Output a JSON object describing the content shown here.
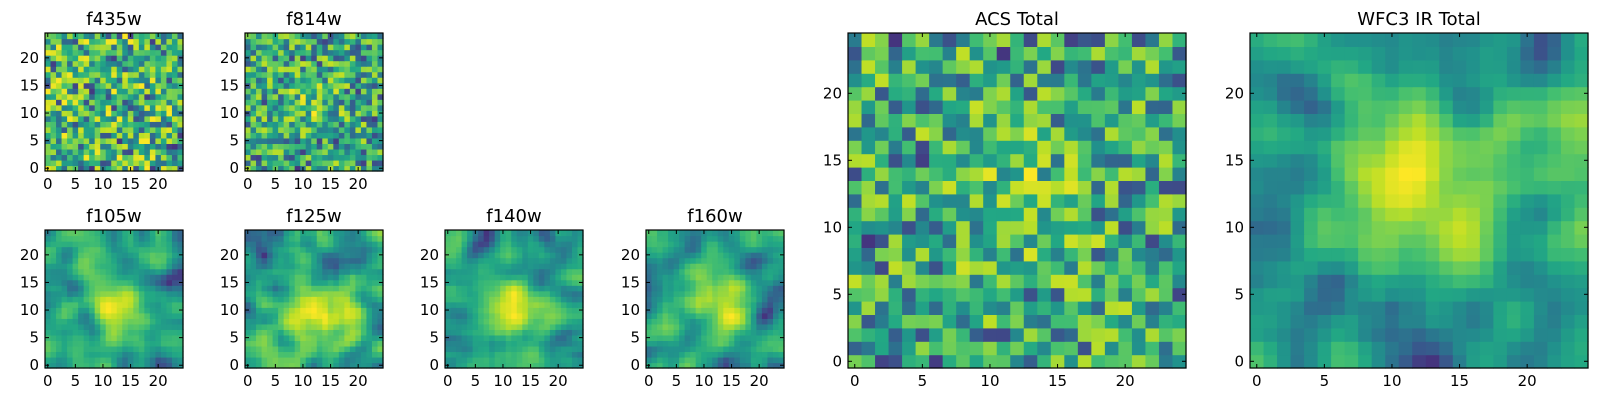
{
  "chart_data": [
    {
      "type": "heatmap",
      "title": "f435w",
      "xticks": [
        "0",
        "5",
        "10",
        "15",
        "20"
      ],
      "yticks": [
        "0",
        "5",
        "10",
        "15",
        "20"
      ],
      "xlim": [
        0,
        24
      ],
      "ylim": [
        0,
        24
      ],
      "grid_size": 25,
      "pattern": "noise",
      "seed": 11,
      "colormap": "viridis"
    },
    {
      "type": "heatmap",
      "title": "f814w",
      "xticks": [
        "0",
        "5",
        "10",
        "15",
        "20"
      ],
      "yticks": [
        "0",
        "5",
        "10",
        "15",
        "20"
      ],
      "xlim": [
        0,
        24
      ],
      "ylim": [
        0,
        24
      ],
      "grid_size": 25,
      "pattern": "noise-peak",
      "peak": [
        12,
        12
      ],
      "seed": 22,
      "colormap": "viridis"
    },
    {
      "type": "heatmap",
      "title": "f105w",
      "xticks": [
        "0",
        "5",
        "10",
        "15",
        "20"
      ],
      "yticks": [
        "0",
        "5",
        "10",
        "15",
        "20"
      ],
      "xlim": [
        0,
        24
      ],
      "ylim": [
        0,
        24
      ],
      "grid_size": 25,
      "pattern": "smooth-peak",
      "peak": [
        12,
        11
      ],
      "seed": 33,
      "colormap": "viridis"
    },
    {
      "type": "heatmap",
      "title": "f125w",
      "xticks": [
        "0",
        "5",
        "10",
        "15",
        "20"
      ],
      "yticks": [
        "0",
        "5",
        "10",
        "15",
        "20"
      ],
      "xlim": [
        0,
        24
      ],
      "ylim": [
        0,
        24
      ],
      "grid_size": 25,
      "pattern": "smooth-peak",
      "peak": [
        13,
        10
      ],
      "seed": 44,
      "colormap": "viridis"
    },
    {
      "type": "heatmap",
      "title": "f140w",
      "xticks": [
        "0",
        "5",
        "10",
        "15",
        "20"
      ],
      "yticks": [
        "0",
        "5",
        "10",
        "15",
        "20"
      ],
      "xlim": [
        0,
        24
      ],
      "ylim": [
        0,
        24
      ],
      "grid_size": 25,
      "pattern": "smooth-peak",
      "peak": [
        12,
        10
      ],
      "seed": 55,
      "colormap": "viridis"
    },
    {
      "type": "heatmap",
      "title": "f160w",
      "xticks": [
        "0",
        "5",
        "10",
        "15",
        "20"
      ],
      "yticks": [
        "0",
        "5",
        "10",
        "15",
        "20"
      ],
      "xlim": [
        0,
        24
      ],
      "ylim": [
        0,
        24
      ],
      "grid_size": 25,
      "pattern": "smooth-peak",
      "peak": [
        13,
        11
      ],
      "seed": 66,
      "colormap": "viridis"
    },
    {
      "type": "heatmap",
      "title": "ACS Total",
      "xticks": [
        "0",
        "5",
        "10",
        "15",
        "20"
      ],
      "yticks": [
        "0",
        "5",
        "10",
        "15",
        "20"
      ],
      "xlim": [
        0,
        24
      ],
      "ylim": [
        0,
        24
      ],
      "grid_size": 25,
      "pattern": "noise-peak",
      "peak": [
        12,
        12
      ],
      "seed": 77,
      "colormap": "viridis"
    },
    {
      "type": "heatmap",
      "title": "WFC3 IR Total",
      "xticks": [
        "0",
        "5",
        "10",
        "15",
        "20"
      ],
      "yticks": [
        "0",
        "5",
        "10",
        "15",
        "20"
      ],
      "xlim": [
        0,
        24
      ],
      "ylim": [
        0,
        24
      ],
      "grid_size": 25,
      "pattern": "smooth-peak",
      "peak": [
        12,
        13
      ],
      "seed": 88,
      "colormap": "viridis"
    }
  ]
}
